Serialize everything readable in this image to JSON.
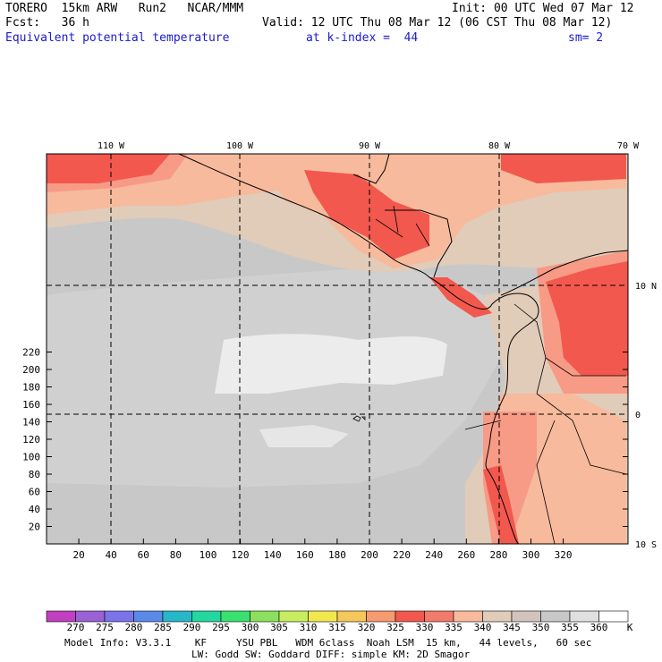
{
  "header": {
    "model": "TORERO  15km ARW   Run2   NCAR/MMM",
    "init": "Init: 00 UTC Wed 07 Mar 12",
    "fcst": "Fcst:   36 h",
    "valid": "Valid: 12 UTC Thu 08 Mar 12 (06 CST Thu 08 Mar 12)",
    "field": "Equivalent potential temperature",
    "level": "at k-index =  44",
    "smooth": "sm= 2"
  },
  "map": {
    "top_lon_labels": [
      "110 W",
      "100 W",
      "90 W",
      "80 W",
      "70 W"
    ],
    "right_lat_labels": [
      "10 N",
      "0",
      "10 S"
    ],
    "y_ticks": [
      "20",
      "40",
      "60",
      "80",
      "100",
      "120",
      "140",
      "160",
      "180",
      "200",
      "220"
    ],
    "x_ticks": [
      "20",
      "40",
      "60",
      "80",
      "100",
      "120",
      "140",
      "160",
      "180",
      "200",
      "220",
      "240",
      "260",
      "280",
      "300",
      "320"
    ],
    "colors": {
      "background_gray": "#c8c8c8",
      "light_gray": "#d2d2d2",
      "white_patch": "#f0f0f0",
      "tan": "#e1cbb9",
      "salmon_light": "#f7ba9c",
      "salmon": "#f79a86",
      "red": "#f2584e",
      "coast": "#000000",
      "grid": "#000000"
    }
  },
  "colorbar": {
    "labels": [
      "270",
      "275",
      "280",
      "285",
      "290",
      "295",
      "300",
      "305",
      "310",
      "315",
      "320",
      "325",
      "330",
      "335",
      "340",
      "345",
      "350",
      "355",
      "360"
    ],
    "unit": "K",
    "colors": [
      "#c040c0",
      "#9a62d4",
      "#7b73e8",
      "#5a8ae8",
      "#26b8c8",
      "#22d8a0",
      "#3ae070",
      "#8ce060",
      "#c8ee60",
      "#f2e84e",
      "#f5c85a",
      "#f79a70",
      "#f2584e",
      "#f27a6a",
      "#f7ba9c",
      "#e1cbb9",
      "#d2c4bc",
      "#c8c8c8",
      "#e0e0e0",
      "#ffffff"
    ]
  },
  "footer": {
    "line1": "Model Info: V3.3.1    KF     YSU PBL   WDM 6class  Noah LSM  15 km,   44 levels,   60 sec",
    "line2": "LW: Godd SW: Goddard DIFF: simple KM: 2D Smagor"
  }
}
